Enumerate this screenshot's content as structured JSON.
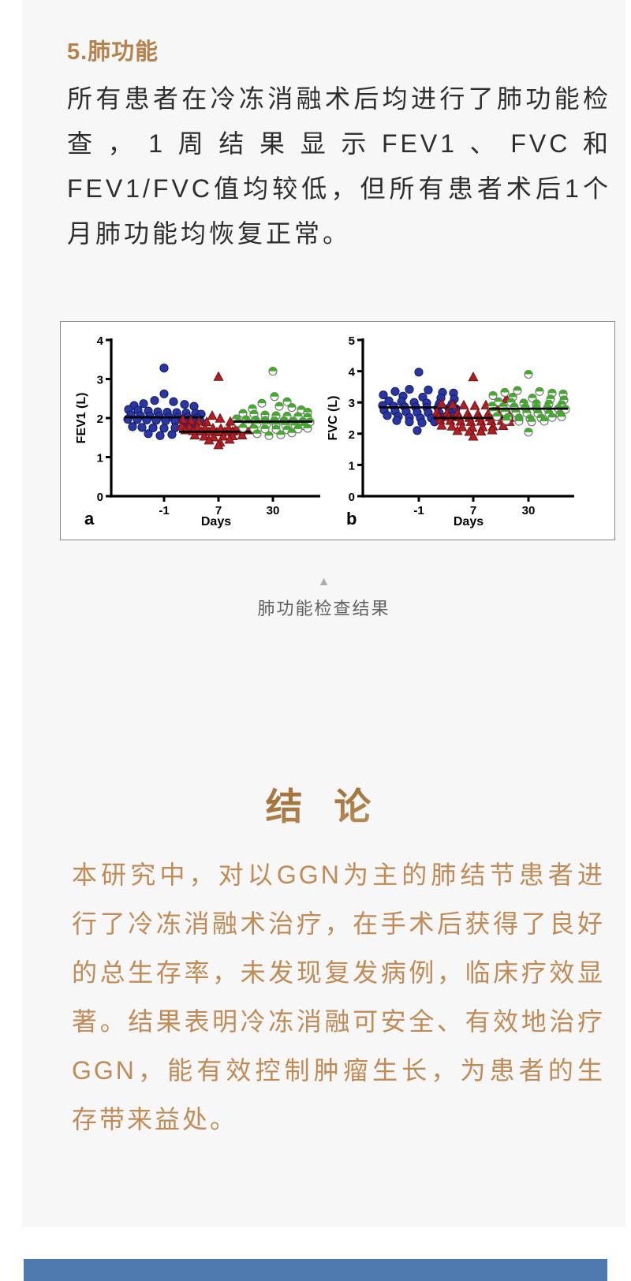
{
  "page": {
    "background": "#ffffff",
    "content_background": "#f7f7f8"
  },
  "section": {
    "heading": "5.肺功能",
    "heading_color": "#b5824e",
    "paragraph": "所有患者在冷冻消融术后均进行了肺功能检查，1周结果显示FEV1、FVC和FEV1/FVC值均较低，但所有患者术后1个月肺功能均恢复正常。"
  },
  "figure_caption": {
    "collapse_icon": "triangle-up-icon",
    "collapse_glyph": "▲",
    "text": "肺功能检查结果"
  },
  "conclusion": {
    "heading": "结 论",
    "text_color": "#c08b56",
    "paragraph": "本研究中，对以GGN为主的肺结节患者进行了冷冻消融术治疗，在手术后获得了良好的总生存率，未发现复发病例，临床疗效显著。结果表明冷冻消融可安全、有效地治疗GGN，能有效控制肿瘤生长，为患者的生存带来益处。"
  },
  "footer": {
    "bar_color": "#4e7ab0"
  },
  "chart_data": [
    {
      "type": "scatter",
      "panel": "a",
      "xlabel": "Days",
      "ylabel": "FEV1 (L)",
      "ylim": [
        0,
        4
      ],
      "yticks": [
        0,
        1,
        2,
        3,
        4
      ],
      "categories": [
        "-1",
        "7",
        "30"
      ],
      "grid": false,
      "legend": "none",
      "series": [
        {
          "name": "Day -1",
          "marker": "circle",
          "color": "#2a36a3",
          "edge": "#131c66",
          "median": 2.02,
          "points": [
            [
              0,
              3.28
            ],
            [
              0,
              2.62
            ],
            [
              -12,
              2.45
            ],
            [
              12,
              2.42
            ],
            [
              -26,
              2.37
            ],
            [
              26,
              2.35
            ],
            [
              -38,
              2.32
            ],
            [
              38,
              2.3
            ],
            [
              -45,
              2.22
            ],
            [
              -33,
              2.2
            ],
            [
              -20,
              2.18
            ],
            [
              -8,
              2.16
            ],
            [
              4,
              2.15
            ],
            [
              16,
              2.14
            ],
            [
              28,
              2.13
            ],
            [
              40,
              2.12
            ],
            [
              47,
              2.1
            ],
            [
              -42,
              2.08
            ],
            [
              -30,
              2.06
            ],
            [
              -18,
              2.05
            ],
            [
              -6,
              2.04
            ],
            [
              6,
              2.03
            ],
            [
              18,
              2.02
            ],
            [
              30,
              2.02
            ],
            [
              42,
              2.0
            ],
            [
              -46,
              1.97
            ],
            [
              -34,
              1.96
            ],
            [
              -22,
              1.95
            ],
            [
              -10,
              1.94
            ],
            [
              2,
              1.93
            ],
            [
              14,
              1.92
            ],
            [
              26,
              1.91
            ],
            [
              38,
              1.9
            ],
            [
              46,
              1.92
            ],
            [
              -40,
              1.78
            ],
            [
              -28,
              1.76
            ],
            [
              -14,
              1.75
            ],
            [
              0,
              1.74
            ],
            [
              14,
              1.75
            ],
            [
              28,
              1.76
            ],
            [
              40,
              1.78
            ],
            [
              -20,
              1.6
            ],
            [
              -5,
              1.55
            ],
            [
              10,
              1.58
            ]
          ]
        },
        {
          "name": "Day 7",
          "marker": "triangle",
          "color": "#b01f24",
          "edge": "#741014",
          "median": 1.65,
          "points": [
            [
              0,
              3.05
            ],
            [
              -8,
              2.05
            ],
            [
              2,
              1.98
            ],
            [
              -45,
              1.95
            ],
            [
              -35,
              1.92
            ],
            [
              -25,
              1.9
            ],
            [
              -15,
              1.89
            ],
            [
              15,
              1.9
            ],
            [
              25,
              1.92
            ],
            [
              35,
              1.94
            ],
            [
              45,
              1.96
            ],
            [
              -47,
              1.78
            ],
            [
              -37,
              1.76
            ],
            [
              -27,
              1.75
            ],
            [
              -17,
              1.74
            ],
            [
              -7,
              1.73
            ],
            [
              3,
              1.72
            ],
            [
              13,
              1.73
            ],
            [
              23,
              1.74
            ],
            [
              33,
              1.75
            ],
            [
              43,
              1.77
            ],
            [
              -42,
              1.68
            ],
            [
              -32,
              1.66
            ],
            [
              -22,
              1.65
            ],
            [
              -12,
              1.64
            ],
            [
              -2,
              1.63
            ],
            [
              8,
              1.64
            ],
            [
              18,
              1.65
            ],
            [
              28,
              1.66
            ],
            [
              38,
              1.68
            ],
            [
              46,
              1.7
            ],
            [
              -30,
              1.55
            ],
            [
              -18,
              1.52
            ],
            [
              -6,
              1.5
            ],
            [
              6,
              1.52
            ],
            [
              18,
              1.53
            ],
            [
              30,
              1.55
            ],
            [
              -12,
              1.42
            ],
            [
              2,
              1.37
            ],
            [
              14,
              1.44
            ],
            [
              0,
              1.3
            ]
          ]
        },
        {
          "name": "Day 30",
          "marker": "half-circle",
          "color": "#3fae27",
          "edge": "#787878",
          "median": 1.91,
          "points": [
            [
              0,
              3.2
            ],
            [
              2,
              2.55
            ],
            [
              18,
              2.42
            ],
            [
              -14,
              2.38
            ],
            [
              8,
              2.3
            ],
            [
              24,
              2.27
            ],
            [
              -26,
              2.24
            ],
            [
              36,
              2.21
            ],
            [
              44,
              2.15
            ],
            [
              -38,
              2.12
            ],
            [
              -24,
              2.1
            ],
            [
              -10,
              2.08
            ],
            [
              4,
              2.06
            ],
            [
              18,
              2.05
            ],
            [
              32,
              2.04
            ],
            [
              44,
              2.02
            ],
            [
              -46,
              1.98
            ],
            [
              -34,
              1.96
            ],
            [
              -22,
              1.95
            ],
            [
              -10,
              1.94
            ],
            [
              2,
              1.93
            ],
            [
              14,
              1.93
            ],
            [
              26,
              1.92
            ],
            [
              38,
              1.91
            ],
            [
              47,
              1.9
            ],
            [
              -44,
              1.88
            ],
            [
              -32,
              1.86
            ],
            [
              -20,
              1.85
            ],
            [
              -8,
              1.84
            ],
            [
              4,
              1.83
            ],
            [
              16,
              1.82
            ],
            [
              28,
              1.81
            ],
            [
              40,
              1.8
            ],
            [
              -38,
              1.75
            ],
            [
              -24,
              1.73
            ],
            [
              -10,
              1.72
            ],
            [
              4,
              1.71
            ],
            [
              18,
              1.7
            ],
            [
              32,
              1.72
            ],
            [
              44,
              1.74
            ],
            [
              -20,
              1.6
            ],
            [
              -5,
              1.55
            ],
            [
              10,
              1.57
            ],
            [
              24,
              1.62
            ]
          ]
        }
      ]
    },
    {
      "type": "scatter",
      "panel": "b",
      "xlabel": "Days",
      "ylabel": "FVC (L)",
      "ylim": [
        0,
        5
      ],
      "yticks": [
        0,
        1,
        2,
        3,
        4,
        5
      ],
      "categories": [
        "-1",
        "7",
        "30"
      ],
      "grid": false,
      "legend": "none",
      "series": [
        {
          "name": "Day -1",
          "marker": "circle",
          "color": "#2a36a3",
          "edge": "#131c66",
          "median": 2.84,
          "points": [
            [
              0,
              3.97
            ],
            [
              -12,
              3.42
            ],
            [
              12,
              3.4
            ],
            [
              -30,
              3.35
            ],
            [
              30,
              3.32
            ],
            [
              44,
              3.3
            ],
            [
              -45,
              3.24
            ],
            [
              -20,
              3.2
            ],
            [
              5,
              3.17
            ],
            [
              28,
              3.14
            ],
            [
              45,
              3.11
            ],
            [
              -38,
              3.05
            ],
            [
              -22,
              3.02
            ],
            [
              -6,
              3.0
            ],
            [
              10,
              2.98
            ],
            [
              26,
              2.96
            ],
            [
              42,
              2.95
            ],
            [
              -46,
              2.9
            ],
            [
              -32,
              2.88
            ],
            [
              -18,
              2.86
            ],
            [
              -4,
              2.85
            ],
            [
              10,
              2.84
            ],
            [
              24,
              2.83
            ],
            [
              38,
              2.82
            ],
            [
              47,
              2.8
            ],
            [
              -44,
              2.75
            ],
            [
              -30,
              2.72
            ],
            [
              -16,
              2.7
            ],
            [
              -2,
              2.68
            ],
            [
              12,
              2.67
            ],
            [
              26,
              2.66
            ],
            [
              40,
              2.65
            ],
            [
              -40,
              2.58
            ],
            [
              -26,
              2.55
            ],
            [
              -12,
              2.52
            ],
            [
              2,
              2.5
            ],
            [
              16,
              2.5
            ],
            [
              30,
              2.52
            ],
            [
              42,
              2.55
            ],
            [
              -28,
              2.42
            ],
            [
              -12,
              2.38
            ],
            [
              4,
              2.35
            ],
            [
              20,
              2.38
            ],
            [
              -2,
              2.1
            ]
          ]
        },
        {
          "name": "Day 7",
          "marker": "triangle",
          "color": "#b01f24",
          "edge": "#741014",
          "median": 2.5,
          "points": [
            [
              0,
              3.8
            ],
            [
              42,
              3.1
            ],
            [
              -40,
              2.95
            ],
            [
              -26,
              2.92
            ],
            [
              -12,
              2.9
            ],
            [
              2,
              2.88
            ],
            [
              16,
              2.9
            ],
            [
              30,
              2.88
            ],
            [
              -46,
              2.68
            ],
            [
              -33,
              2.66
            ],
            [
              -20,
              2.65
            ],
            [
              -7,
              2.63
            ],
            [
              6,
              2.62
            ],
            [
              19,
              2.63
            ],
            [
              32,
              2.64
            ],
            [
              45,
              2.62
            ],
            [
              -44,
              2.55
            ],
            [
              -31,
              2.53
            ],
            [
              -18,
              2.52
            ],
            [
              -5,
              2.5
            ],
            [
              8,
              2.5
            ],
            [
              21,
              2.51
            ],
            [
              34,
              2.52
            ],
            [
              46,
              2.5
            ],
            [
              -42,
              2.42
            ],
            [
              -29,
              2.4
            ],
            [
              -16,
              2.38
            ],
            [
              -3,
              2.37
            ],
            [
              10,
              2.38
            ],
            [
              23,
              2.39
            ],
            [
              36,
              2.4
            ],
            [
              46,
              2.37
            ],
            [
              -40,
              2.25
            ],
            [
              -27,
              2.22
            ],
            [
              -14,
              2.2
            ],
            [
              -1,
              2.18
            ],
            [
              12,
              2.2
            ],
            [
              25,
              2.22
            ],
            [
              38,
              2.24
            ],
            [
              -20,
              2.08
            ],
            [
              -5,
              2.05
            ],
            [
              10,
              2.06
            ],
            [
              24,
              2.1
            ],
            [
              0,
              1.9
            ]
          ]
        },
        {
          "name": "Day 30",
          "marker": "half-circle",
          "color": "#3fae27",
          "edge": "#787878",
          "median": 2.8,
          "points": [
            [
              0,
              3.9
            ],
            [
              -14,
              3.38
            ],
            [
              14,
              3.35
            ],
            [
              -30,
              3.32
            ],
            [
              30,
              3.3
            ],
            [
              44,
              3.27
            ],
            [
              -45,
              3.22
            ],
            [
              -20,
              3.17
            ],
            [
              5,
              3.14
            ],
            [
              28,
              3.11
            ],
            [
              45,
              3.08
            ],
            [
              -38,
              3.02
            ],
            [
              -22,
              3.0
            ],
            [
              -6,
              2.98
            ],
            [
              10,
              2.96
            ],
            [
              26,
              2.95
            ],
            [
              42,
              2.93
            ],
            [
              -46,
              2.88
            ],
            [
              -32,
              2.86
            ],
            [
              -18,
              2.85
            ],
            [
              -4,
              2.84
            ],
            [
              10,
              2.83
            ],
            [
              24,
              2.82
            ],
            [
              38,
              2.8
            ],
            [
              47,
              2.78
            ],
            [
              -44,
              2.72
            ],
            [
              -30,
              2.7
            ],
            [
              -16,
              2.68
            ],
            [
              -2,
              2.66
            ],
            [
              12,
              2.65
            ],
            [
              26,
              2.64
            ],
            [
              40,
              2.62
            ],
            [
              -40,
              2.55
            ],
            [
              -26,
              2.52
            ],
            [
              -12,
              2.5
            ],
            [
              2,
              2.48
            ],
            [
              16,
              2.5
            ],
            [
              30,
              2.52
            ],
            [
              42,
              2.54
            ],
            [
              -28,
              2.42
            ],
            [
              -12,
              2.4
            ],
            [
              4,
              2.38
            ],
            [
              20,
              2.4
            ],
            [
              0,
              2.05
            ]
          ]
        }
      ]
    }
  ]
}
